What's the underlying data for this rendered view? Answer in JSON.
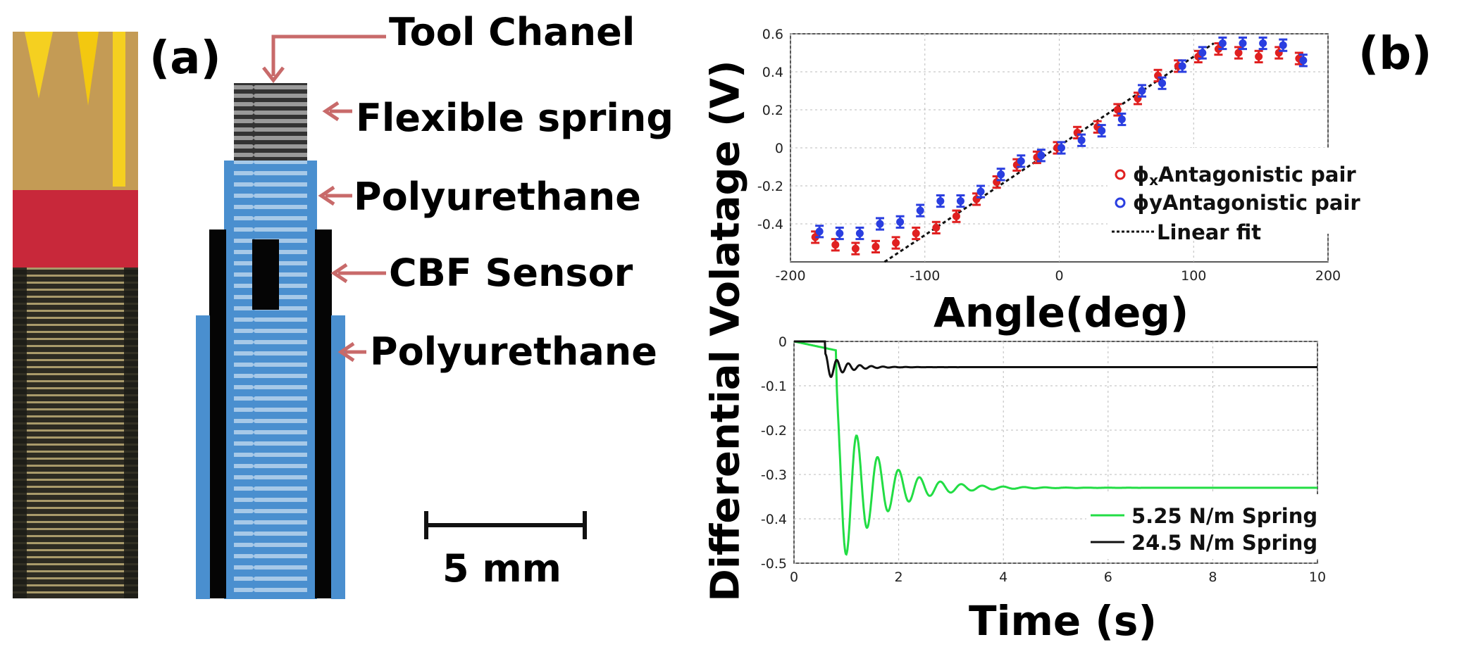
{
  "panels": {
    "a": "(a)",
    "b": "(b)"
  },
  "parts": [
    "Tool Chanel",
    "Flexible spring",
    "Polyurethane",
    "CBF Sensor",
    "Polyurethane"
  ],
  "scale_bar": "5 mm",
  "shared_ylabel": "Differential Volatage (V)",
  "colors": {
    "red": "#e02020",
    "blue": "#2a3ee0",
    "green": "#22dd44",
    "black": "#111111",
    "tube": "#4a8fcf"
  },
  "chart_data": [
    {
      "type": "scatter",
      "xlabel": "Angle(deg)",
      "ylabel": "Differential Volatage (V)",
      "xlim": [
        -200,
        200
      ],
      "ylim": [
        -0.6,
        0.6
      ],
      "xticks": [
        -200,
        -100,
        0,
        100,
        200
      ],
      "yticks": [
        0.6,
        0.4,
        0.2,
        0,
        -0.2,
        -0.4
      ],
      "grid": true,
      "legend_position": "center-right",
      "series": [
        {
          "name": "ϕxAntagonistic pair",
          "label_main": "ϕ",
          "label_sub": "x",
          "label_rest": "Antagonistic pair",
          "color": "red",
          "x": [
            -180,
            -165,
            -150,
            -135,
            -120,
            -105,
            -90,
            -75,
            -60,
            -45,
            -30,
            -15,
            0,
            15,
            30,
            45,
            60,
            75,
            90,
            105,
            120,
            135,
            150,
            165,
            180
          ],
          "y": [
            -0.47,
            -0.51,
            -0.53,
            -0.52,
            -0.5,
            -0.45,
            -0.42,
            -0.36,
            -0.27,
            -0.18,
            -0.09,
            -0.05,
            0.0,
            0.08,
            0.11,
            0.2,
            0.26,
            0.38,
            0.43,
            0.48,
            0.52,
            0.5,
            0.48,
            0.5,
            0.47
          ],
          "err": 0.03
        },
        {
          "name": "ϕyAntagonistic pair",
          "label_main": "ϕ",
          "label_sub": "",
          "label_rest": "yAntagonistic pair",
          "color": "blue",
          "x": [
            -180,
            -165,
            -150,
            -135,
            -120,
            -105,
            -90,
            -75,
            -60,
            -45,
            -30,
            -15,
            0,
            15,
            30,
            45,
            60,
            75,
            90,
            105,
            120,
            135,
            150,
            165,
            180
          ],
          "y": [
            -0.44,
            -0.45,
            -0.45,
            -0.4,
            -0.39,
            -0.33,
            -0.28,
            -0.28,
            -0.23,
            -0.14,
            -0.07,
            -0.04,
            0.0,
            0.04,
            0.09,
            0.15,
            0.3,
            0.34,
            0.43,
            0.5,
            0.55,
            0.55,
            0.55,
            0.54,
            0.46
          ],
          "err": 0.03
        },
        {
          "name": "Linear fit",
          "color": "black",
          "style": "dotted",
          "x": [
            -130,
            115
          ],
          "y": [
            -0.6,
            0.55
          ]
        }
      ]
    },
    {
      "type": "line",
      "xlabel": "Time (s)",
      "xlim": [
        0,
        10
      ],
      "ylim": [
        -0.5,
        0
      ],
      "xticks": [
        0,
        2,
        4,
        6,
        8,
        10
      ],
      "yticks": [
        0,
        -0.1,
        -0.2,
        -0.3,
        -0.4,
        -0.5
      ],
      "grid": true,
      "legend_position": "bottom-right",
      "series": [
        {
          "name": "5.25 N/m Spring",
          "color": "green",
          "baseline": -0.33,
          "step_time": 0.8,
          "period": 0.4,
          "amplitude": -0.23,
          "tau": 0.75,
          "initial_drift": -0.02
        },
        {
          "name": "24.5 N/m Spring",
          "color": "black",
          "baseline": -0.058,
          "step_time": 0.6,
          "period": 0.22,
          "amplitude": 0.03,
          "tau": 0.35,
          "initial_drift": 0.0
        }
      ]
    }
  ]
}
